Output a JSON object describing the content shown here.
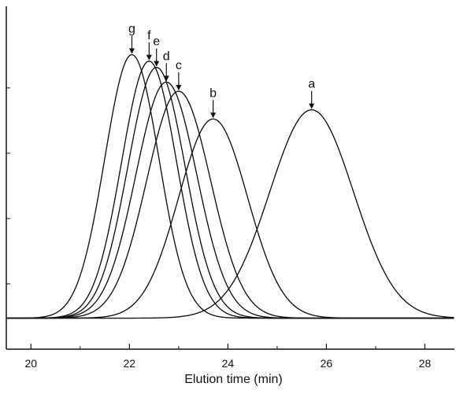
{
  "chart_data": {
    "type": "line",
    "title": "",
    "xlabel": "Elution time (min)",
    "ylabel": "",
    "xlim": [
      19.5,
      28.6
    ],
    "ylim": [
      0,
      1.05
    ],
    "x_ticks": [
      20,
      22,
      24,
      26,
      28
    ],
    "x_tick_labels": [
      "20",
      "22",
      "24",
      "26",
      "28"
    ],
    "x_minor_ticks": [
      21,
      23,
      25,
      27
    ],
    "y_ticks": [
      0.2,
      0.4,
      0.6,
      0.8
    ],
    "y_tick_labels": [],
    "grid": false,
    "legend": "none",
    "line_color": "#111111",
    "series": [
      {
        "name": "a",
        "label": "a",
        "peak_x": 25.7,
        "peak_y": 0.733,
        "width": 0.85,
        "baseline": 0.095
      },
      {
        "name": "b",
        "label": "b",
        "peak_x": 23.7,
        "peak_y": 0.705,
        "width": 0.7,
        "baseline": 0.095
      },
      {
        "name": "c",
        "label": "c",
        "peak_x": 23.0,
        "peak_y": 0.79,
        "width": 0.65,
        "baseline": 0.095
      },
      {
        "name": "d",
        "label": "d",
        "peak_x": 22.75,
        "peak_y": 0.818,
        "width": 0.62,
        "baseline": 0.095
      },
      {
        "name": "e",
        "label": "e",
        "peak_x": 22.55,
        "peak_y": 0.863,
        "width": 0.58,
        "baseline": 0.095
      },
      {
        "name": "f",
        "label": "f",
        "peak_x": 22.4,
        "peak_y": 0.882,
        "width": 0.56,
        "baseline": 0.095
      },
      {
        "name": "g",
        "label": "g",
        "peak_x": 22.05,
        "peak_y": 0.902,
        "width": 0.55,
        "baseline": 0.095
      }
    ]
  }
}
